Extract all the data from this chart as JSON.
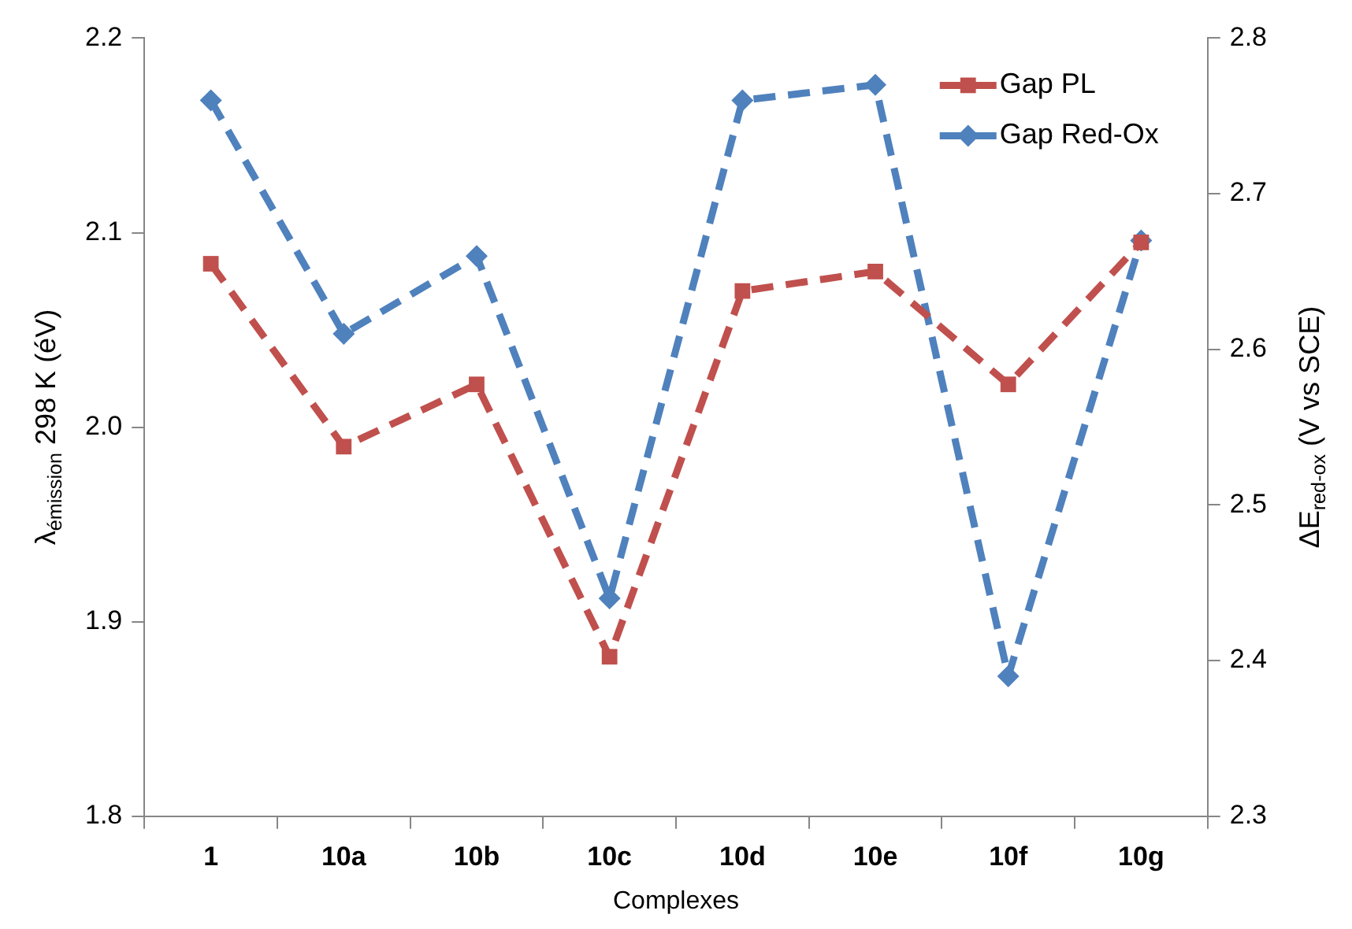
{
  "chart_data": {
    "type": "line",
    "xlabel": "Complexes",
    "ylabel": "λ$_{émission}$ 298 K (éV)",
    "y2label": "ΔE$_{red-ox}$ (V vs SCE)",
    "categories": [
      "1",
      "10a",
      "10b",
      "10c",
      "10d",
      "10e",
      "10f",
      "10g"
    ],
    "series": [
      {
        "name": "Gap PL",
        "color": "#c0504d",
        "marker": "square",
        "values": [
          2.084,
          1.99,
          2.022,
          1.882,
          2.07,
          2.08,
          2.022,
          2.095
        ]
      },
      {
        "name": "Gap Red-Ox",
        "color": "#4f81bd",
        "marker": "diamond",
        "axis": "y2",
        "values": [
          2.76,
          2.61,
          2.66,
          2.44,
          2.76,
          2.77,
          2.39,
          2.67
        ]
      }
    ],
    "ylim": [
      1.8,
      2.2
    ],
    "yticks": [
      1.8,
      1.9,
      {
        "value": 2,
        "label": "2.0"
      },
      2.1,
      2.2
    ],
    "y2lim": [
      2.3,
      2.8
    ],
    "y2ticks": [
      2.3,
      2.4,
      2.5,
      2.6,
      2.7,
      2.8
    ],
    "grid": false,
    "legend": "top right",
    "line_style": "dashed"
  }
}
